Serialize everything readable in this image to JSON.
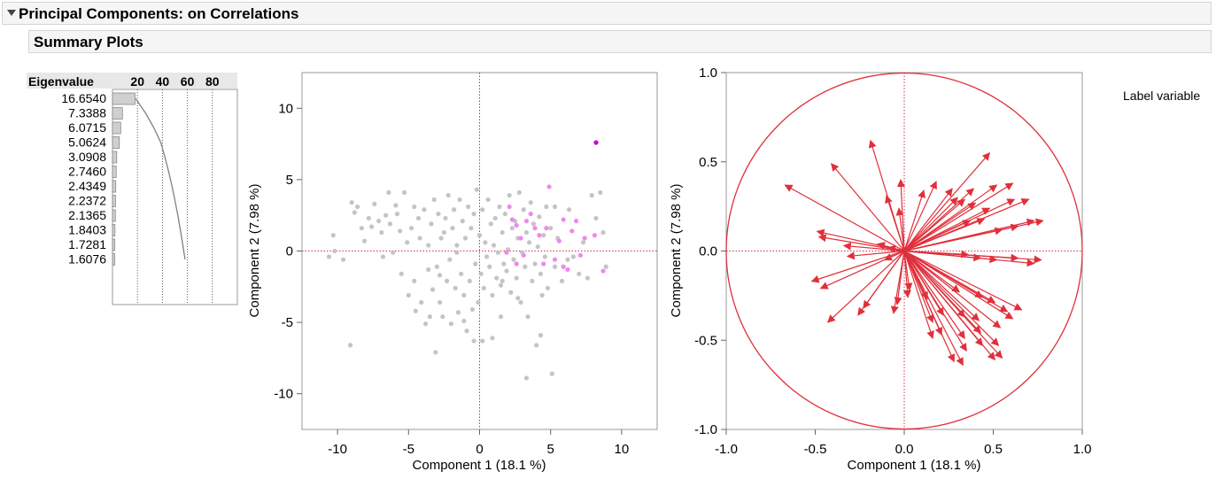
{
  "report": {
    "title": "Principal Components: on Correlations",
    "summary_title": "Summary Plots"
  },
  "colors": {
    "point_gray": "#c4c4c4",
    "point_pink": "#ee88ee",
    "point_magenta": "#cc00cc",
    "loading_red": "#e0303c",
    "ref_line_red": "#d03040",
    "bar_fill": "#d0d0d0"
  },
  "side_label": "Label variable",
  "chart_data": [
    {
      "type": "bar",
      "name": "eigenvalue-chart",
      "column_header": "Eigenvalue",
      "x_ticks": [
        "20",
        "40",
        "60",
        "80"
      ],
      "values": [
        16.654,
        7.3388,
        6.0715,
        5.0624,
        3.0908,
        2.746,
        2.4349,
        2.2372,
        2.1365,
        1.8403,
        1.7281,
        1.6076
      ],
      "labels": [
        "16.6540",
        "7.3388",
        "6.0715",
        "5.0624",
        "3.0908",
        "2.7460",
        "2.4349",
        "2.2372",
        "2.1365",
        "1.8403",
        "1.7281",
        "1.6076"
      ],
      "cumulative_percent": [
        18.1,
        26.1,
        32.7,
        38.2,
        41.5,
        44.5,
        47.2,
        49.6,
        51.9,
        53.9,
        55.8,
        57.6
      ],
      "xlim": [
        0,
        100
      ]
    },
    {
      "type": "scatter",
      "name": "score-plot",
      "xlabel": "Component 1  (18.1 %)",
      "ylabel": "Component 2  (7.98 %)",
      "xlim": [
        -12.5,
        12.5
      ],
      "ylim": [
        -12.5,
        12.5
      ],
      "x_ticks": [
        "-10",
        "-5",
        "0",
        "5",
        "10"
      ],
      "y_ticks": [
        "10",
        "5",
        "0",
        "-5",
        "-10"
      ],
      "x_tick_values": [
        -10,
        -5,
        0,
        5,
        10
      ],
      "y_tick_values": [
        10,
        5,
        0,
        -5,
        -10
      ],
      "series": [
        {
          "values": [
            [
              -10.3,
              1.1
            ],
            [
              -10.6,
              -0.4
            ],
            [
              -10.2,
              0
            ],
            [
              -9.6,
              -0.6
            ],
            [
              -9.1,
              -6.6
            ],
            [
              -9,
              3.4
            ],
            [
              -8.8,
              2.7
            ],
            [
              -8.6,
              3.1
            ],
            [
              -8.3,
              1.6
            ],
            [
              -8.1,
              0.7
            ],
            [
              -7.8,
              2.3
            ],
            [
              -7.6,
              1.7
            ],
            [
              -7.4,
              3.3
            ],
            [
              -7.1,
              2.1
            ],
            [
              -6.9,
              1.3
            ],
            [
              -6.8,
              -0.4
            ],
            [
              -6.6,
              2.5
            ],
            [
              -6.4,
              4.1
            ],
            [
              -6.3,
              1.9
            ],
            [
              -6.1,
              -0.1
            ],
            [
              -5.9,
              3.2
            ],
            [
              -5.8,
              2.6
            ],
            [
              -5.6,
              1.4
            ],
            [
              -5.5,
              -1.6
            ],
            [
              -5.3,
              4.1
            ],
            [
              -5.1,
              0.6
            ],
            [
              -5,
              -3.1
            ],
            [
              -4.8,
              1.6
            ],
            [
              -4.6,
              3.1
            ],
            [
              -4.5,
              -4.2
            ],
            [
              -4.3,
              2.3
            ],
            [
              -4.2,
              0.9
            ],
            [
              -4.1,
              -3.6
            ],
            [
              -3.9,
              2.9
            ],
            [
              -3.8,
              -5.1
            ],
            [
              -3.6,
              0.4
            ],
            [
              -3.5,
              -4.6
            ],
            [
              -3.4,
              1.9
            ],
            [
              -3.3,
              -2.7
            ],
            [
              -3.2,
              3.6
            ],
            [
              -3.1,
              -7.1
            ],
            [
              -3,
              -1.1
            ],
            [
              -2.9,
              2.6
            ],
            [
              -2.8,
              -3.6
            ],
            [
              -2.7,
              0.9
            ],
            [
              -2.6,
              -4.6
            ],
            [
              -2.5,
              1.3
            ],
            [
              -2.4,
              2.3
            ],
            [
              -2.3,
              -2.1
            ],
            [
              -2.2,
              3.9
            ],
            [
              -2.1,
              -0.6
            ],
            [
              -2,
              -5.1
            ],
            [
              -1.9,
              1.6
            ],
            [
              -1.8,
              2.9
            ],
            [
              -1.7,
              -2.6
            ],
            [
              -1.6,
              0.4
            ],
            [
              -1.5,
              -4.3
            ],
            [
              -1.4,
              3.6
            ],
            [
              -1.3,
              -1.6
            ],
            [
              -1.2,
              2.1
            ],
            [
              -1.1,
              -3.1
            ],
            [
              -1,
              0.9
            ],
            [
              -0.9,
              -5.6
            ],
            [
              -0.8,
              3.1
            ],
            [
              -0.7,
              -2.1
            ],
            [
              -0.6,
              1.6
            ],
            [
              -0.5,
              -4.1
            ],
            [
              -0.4,
              2.6
            ],
            [
              -0.3,
              -0.9
            ],
            [
              -0.2,
              4.3
            ],
            [
              -0.1,
              -3.6
            ],
            [
              0,
              1.1
            ],
            [
              0.1,
              -1.6
            ],
            [
              0.2,
              2.9
            ],
            [
              0.3,
              -2.6
            ],
            [
              0.4,
              0.6
            ],
            [
              0.5,
              -0.4
            ],
            [
              0.6,
              3.6
            ],
            [
              0.7,
              -1.1
            ],
            [
              0.8,
              1.9
            ],
            [
              0.9,
              -3.1
            ],
            [
              1,
              0.4
            ],
            [
              1.1,
              2.3
            ],
            [
              1.2,
              -1.9
            ],
            [
              1.3,
              -0.1
            ],
            [
              1.4,
              3.1
            ],
            [
              1.5,
              -2.4
            ],
            [
              1.6,
              1.3
            ],
            [
              1.7,
              -0.9
            ],
            [
              1.8,
              2.6
            ],
            [
              1.9,
              -1.4
            ],
            [
              2,
              0.1
            ],
            [
              2.1,
              3.9
            ],
            [
              2.2,
              -2.9
            ],
            [
              2.3,
              1.6
            ],
            [
              2.4,
              -0.6
            ],
            [
              2.5,
              2.1
            ],
            [
              2.6,
              -1.9
            ],
            [
              2.7,
              0.9
            ],
            [
              2.8,
              4.1
            ],
            [
              2.9,
              -3.6
            ],
            [
              3,
              -0.1
            ],
            [
              3.1,
              2.9
            ],
            [
              3.2,
              -1.1
            ],
            [
              3.3,
              1.3
            ],
            [
              3.4,
              -4.6
            ],
            [
              3.5,
              0.6
            ],
            [
              3.6,
              3.4
            ],
            [
              3.7,
              -2.1
            ],
            [
              3.8,
              1.9
            ],
            [
              3.9,
              -0.9
            ],
            [
              4,
              -6.6
            ],
            [
              4.1,
              0.3
            ],
            [
              4.2,
              2.4
            ],
            [
              4.3,
              -1.6
            ],
            [
              4.4,
              -3.1
            ],
            [
              4.5,
              1.1
            ],
            [
              4.6,
              -0.4
            ],
            [
              4.7,
              3.1
            ],
            [
              4.8,
              -2.6
            ],
            [
              5,
              1.6
            ],
            [
              5.1,
              -8.6
            ],
            [
              5.3,
              -1.1
            ],
            [
              5.5,
              0.9
            ],
            [
              5.8,
              -2.1
            ],
            [
              6.2,
              -0.6
            ],
            [
              6.6,
              -0.4
            ],
            [
              7,
              -1.6
            ],
            [
              7.3,
              0.6
            ],
            [
              7.6,
              -1.9
            ],
            [
              7.9,
              3.9
            ],
            [
              8.2,
              2.3
            ],
            [
              8.5,
              4.1
            ],
            [
              8.7,
              1.3
            ],
            [
              8.9,
              -1.1
            ],
            [
              3.3,
              -8.9
            ],
            [
              -1.1,
              -4.9
            ],
            [
              0.2,
              -6.3
            ],
            [
              1.6,
              -2.1
            ],
            [
              -4.6,
              -2.1
            ],
            [
              5.3,
              3.1
            ],
            [
              6.3,
              2.9
            ],
            [
              0.9,
              -6.1
            ],
            [
              4.3,
              -5.9
            ],
            [
              -3.6,
              -1.3
            ],
            [
              2.7,
              -3.3
            ],
            [
              -2.8,
              -1.7
            ],
            [
              1.5,
              -4.6
            ],
            [
              -0.4,
              -6.3
            ],
            [
              -1.6,
              -0.1
            ]
          ]
        },
        {
          "values": [
            [
              2.1,
              3.1
            ],
            [
              2.3,
              2.2
            ],
            [
              2.6,
              1.8
            ],
            [
              2.9,
              0.9
            ],
            [
              3.3,
              2.1
            ],
            [
              3.6,
              2.6
            ],
            [
              3.9,
              1.6
            ],
            [
              4.2,
              1.1
            ],
            [
              4.5,
              -0.9
            ],
            [
              4.9,
              4.5
            ],
            [
              5.3,
              -0.6
            ],
            [
              5.6,
              0.7
            ],
            [
              5.9,
              2.2
            ],
            [
              6.2,
              -1.3
            ],
            [
              6.5,
              1.4
            ],
            [
              6.8,
              2.1
            ],
            [
              7.1,
              -0.3
            ],
            [
              7.4,
              0.9
            ],
            [
              8.1,
              1.1
            ],
            [
              3.1,
              -0.3
            ],
            [
              4.7,
              1.6
            ],
            [
              5.9,
              -1.1
            ],
            [
              8.7,
              -1.4
            ],
            [
              1.9,
              -0.1
            ],
            [
              2.6,
              -0.9
            ]
          ]
        },
        {
          "values": [
            [
              8.2,
              7.6
            ]
          ]
        }
      ]
    },
    {
      "type": "scatter",
      "name": "loading-plot",
      "xlabel": "Component 1  (18.1 %)",
      "ylabel": "Component 2  (7.98 %)",
      "xlim": [
        -1.0,
        1.0
      ],
      "ylim": [
        -1.0,
        1.0
      ],
      "x_ticks": [
        "-1.0",
        "-0.5",
        "0.0",
        "0.5",
        "1.0"
      ],
      "y_ticks": [
        "1.0",
        "0.5",
        "0.0",
        "-0.5",
        "-1.0"
      ],
      "x_tick_values": [
        -1,
        -0.5,
        0,
        0.5,
        1
      ],
      "y_tick_values": [
        1,
        0.5,
        0,
        -0.5,
        -1
      ],
      "loadings": [
        [
          -0.67,
          0.37
        ],
        [
          -0.41,
          0.49
        ],
        [
          -0.19,
          0.62
        ],
        [
          -0.02,
          0.4
        ],
        [
          0.48,
          0.55
        ],
        [
          0.3,
          0.3
        ],
        [
          0.39,
          0.35
        ],
        [
          0.52,
          0.37
        ],
        [
          0.61,
          0.38
        ],
        [
          0.62,
          0.29
        ],
        [
          0.7,
          0.29
        ],
        [
          0.78,
          0.17
        ],
        [
          0.73,
          0.17
        ],
        [
          0.64,
          0.14
        ],
        [
          0.55,
          0.12
        ],
        [
          0.45,
          0.18
        ],
        [
          0.37,
          0.17
        ],
        [
          0.48,
          0.24
        ],
        [
          0.4,
          0.27
        ],
        [
          0.34,
          0.29
        ],
        [
          0.27,
          0.35
        ],
        [
          0.18,
          0.39
        ],
        [
          0.11,
          0.34
        ],
        [
          -0.03,
          0.24
        ],
        [
          -0.1,
          0.31
        ],
        [
          -0.49,
          0.11
        ],
        [
          -0.48,
          0.08
        ],
        [
          -0.34,
          0.03
        ],
        [
          -0.15,
          0.04
        ],
        [
          -0.09,
          0.02
        ],
        [
          0.77,
          -0.05
        ],
        [
          0.73,
          -0.07
        ],
        [
          0.64,
          -0.04
        ],
        [
          0.52,
          -0.05
        ],
        [
          0.43,
          -0.04
        ],
        [
          0.36,
          -0.02
        ],
        [
          -0.32,
          -0.03
        ],
        [
          -0.11,
          -0.05
        ],
        [
          -0.52,
          -0.17
        ],
        [
          -0.47,
          -0.21
        ],
        [
          -0.43,
          -0.4
        ],
        [
          -0.26,
          -0.36
        ],
        [
          -0.23,
          -0.32
        ],
        [
          -0.06,
          -0.35
        ],
        [
          -0.04,
          -0.3
        ],
        [
          0.03,
          -0.22
        ],
        [
          0.22,
          -0.36
        ],
        [
          0.34,
          -0.37
        ],
        [
          0.42,
          -0.39
        ],
        [
          0.43,
          -0.46
        ],
        [
          0.54,
          -0.43
        ],
        [
          0.58,
          -0.34
        ],
        [
          0.51,
          -0.29
        ],
        [
          0.44,
          -0.26
        ],
        [
          0.31,
          -0.23
        ],
        [
          0.13,
          -0.27
        ],
        [
          0.02,
          -0.26
        ],
        [
          0.16,
          -0.49
        ],
        [
          0.34,
          -0.49
        ],
        [
          0.51,
          -0.61
        ],
        [
          0.55,
          -0.6
        ],
        [
          0.44,
          -0.53
        ],
        [
          0.66,
          -0.33
        ],
        [
          0.61,
          -0.38
        ],
        [
          0.21,
          -0.47
        ],
        [
          0.16,
          -0.4
        ],
        [
          0.35,
          -0.56
        ],
        [
          0.28,
          -0.62
        ],
        [
          0.33,
          -0.64
        ],
        [
          0.53,
          -0.53
        ]
      ]
    }
  ]
}
